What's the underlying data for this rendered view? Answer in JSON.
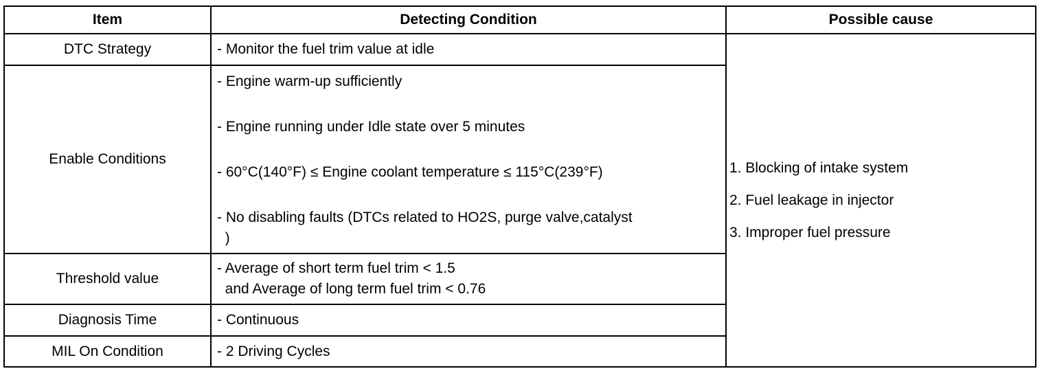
{
  "headers": [
    "Item",
    "Detecting Condition",
    "Possible cause"
  ],
  "rows": [
    {
      "item": "DTC Strategy",
      "conditions": [
        "- Monitor the fuel trim value at idle"
      ]
    },
    {
      "item": "Enable Conditions",
      "conditions": [
        "- Engine warm-up sufficiently",
        "- Engine running under Idle state over 5 minutes",
        "- 60°C(140°F) ≤ Engine coolant temperature ≤ 115°C(239°F)",
        "- No disabling faults (DTCs related to HO2S, purge valve,catalyst",
        "  )"
      ]
    },
    {
      "item": "Threshold value",
      "conditions": [
        "- Average of short term fuel trim < 1.5",
        "  and Average of long term fuel trim < 0.76"
      ]
    },
    {
      "item": "Diagnosis Time",
      "conditions": [
        "- Continuous"
      ]
    },
    {
      "item": "MIL On Condition",
      "conditions": [
        "- 2 Driving Cycles"
      ]
    }
  ],
  "possible_causes": [
    "1. Blocking of intake system",
    "2. Fuel leakage in injector",
    "3. Improper fuel pressure"
  ]
}
